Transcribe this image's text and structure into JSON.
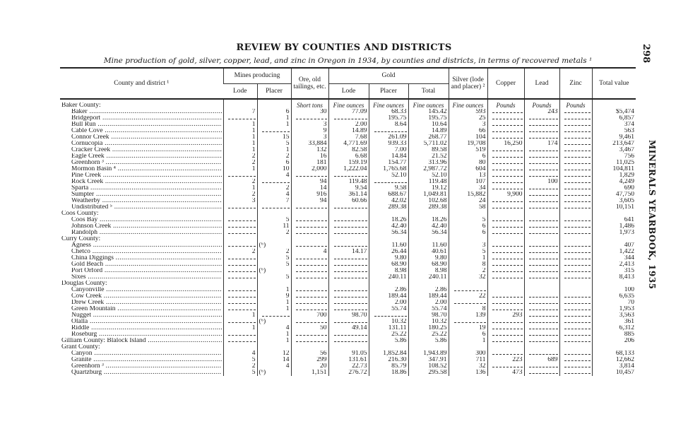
{
  "page": {
    "title": "REVIEW BY COUNTIES AND DISTRICTS",
    "subtitle": "Mine production of gold, silver, copper, lead, and zinc in Oregon in 1934, by counties and districts, in terms of recovered metals ¹",
    "page_number": "298",
    "running_head": "MINERALS YEARBOOK, 1935"
  },
  "table": {
    "headers": {
      "county": "County and district ¹",
      "mines": "Mines producing",
      "mines_lode": "Lode",
      "mines_placer": "Placer",
      "ore": "Ore, old tailings, etc.",
      "gold": "Gold",
      "gold_lode": "Lode",
      "gold_placer": "Placer",
      "gold_total": "Total",
      "silver": "Silver (lode and placer) ²",
      "copper": "Copper",
      "lead": "Lead",
      "zinc": "Zinc",
      "total_value": "Total value"
    },
    "units": [
      "",
      "",
      "Short tons",
      "Fine ounces",
      "Fine ounces",
      "Fine ounces",
      "Fine ounces",
      "Pounds",
      "Pounds",
      "Pounds",
      ""
    ],
    "blank_marker": "-",
    "rows": [
      {
        "name": "Baker County:",
        "group": true
      },
      {
        "name": "Baker",
        "v": [
          "7",
          "6",
          "30",
          "77.09",
          "68.33",
          "145.42",
          "593",
          "-",
          "243",
          "-",
          "$5,474"
        ]
      },
      {
        "name": "Bridgeport",
        "v": [
          "-",
          "1",
          "-",
          "-",
          "195.75",
          "195.75",
          "25",
          "-",
          "-",
          "-",
          "6,857"
        ]
      },
      {
        "name": "Bull Run",
        "v": [
          "1",
          "1",
          "3",
          "2.00",
          "8.64",
          "10.64",
          "3",
          "-",
          "-",
          "-",
          "374"
        ]
      },
      {
        "name": "Cable Cove",
        "v": [
          "1",
          "-",
          "9",
          "14.89",
          "-",
          "14.89",
          "66",
          "-",
          "-",
          "-",
          "563"
        ]
      },
      {
        "name": "Connor Creek",
        "v": [
          "1",
          "15",
          "3",
          "7.68",
          "261.09",
          "268.77",
          "104",
          "-",
          "-",
          "-",
          "9,461"
        ]
      },
      {
        "name": "Cornucopia",
        "v": [
          "1",
          "5",
          "33,884",
          "4,771.69",
          "939.33",
          "5,711.02",
          "19,708",
          "16,250",
          "174",
          "-",
          "213,647"
        ]
      },
      {
        "name": "Cracker Creek",
        "v": [
          "1",
          "1",
          "132",
          "82.58",
          "7.00",
          "89.58",
          "519",
          "-",
          "-",
          "-",
          "3,467"
        ]
      },
      {
        "name": "Eagle Creek",
        "v": [
          "2",
          "2",
          "16",
          "6.68",
          "14.84",
          "21.52",
          "6",
          "-",
          "-",
          "-",
          "756"
        ]
      },
      {
        "name": "Greenhorn ³",
        "v": [
          "2",
          "6",
          "181",
          "159.19",
          "154.77",
          "313.96",
          "80",
          "-",
          "-",
          "-",
          "11,025"
        ]
      },
      {
        "name": "Mormon Basin ⁴",
        "v": [
          "1",
          "10",
          "2,000",
          "1,222.04",
          "1,765.68",
          "2,987.72",
          "604",
          "-",
          "-",
          "-",
          "104,811"
        ]
      },
      {
        "name": "Pine Creek",
        "v": [
          "-",
          "4",
          "-",
          "-",
          "52.10",
          "52.10",
          "13",
          "-",
          "-",
          "-",
          "1,829"
        ]
      },
      {
        "name": "Rock Creek",
        "v": [
          "2",
          "-",
          "94",
          "119.48",
          "-",
          "119.48",
          "107",
          "-",
          "100",
          "-",
          "4,249"
        ]
      },
      {
        "name": "Sparta",
        "v": [
          "1",
          "2",
          "14",
          "9.54",
          "9.58",
          "19.12",
          "34",
          "-",
          "-",
          "-",
          "690"
        ]
      },
      {
        "name": "Sumpter",
        "v": [
          "2",
          "4",
          "916",
          "361.14",
          "688.67",
          "1,049.81",
          "15,882",
          "9,900",
          "-",
          "-",
          "47,750"
        ]
      },
      {
        "name": "Weatherby",
        "v": [
          "3",
          "7",
          "94",
          "60.66",
          "42.02",
          "102.68",
          "24",
          "-",
          "-",
          "-",
          "3,605"
        ]
      },
      {
        "name": "Undistributed ⁵",
        "v": [
          "-",
          "-",
          "-",
          "-",
          "289.38",
          "289.38",
          "58",
          "-",
          "-",
          "-",
          "10,151"
        ]
      },
      {
        "name": "Coos County:",
        "group": true
      },
      {
        "name": "Coos Bay",
        "v": [
          "-",
          "5",
          "-",
          "-",
          "18.26",
          "18.26",
          "5",
          "-",
          "-",
          "-",
          "641"
        ]
      },
      {
        "name": "Johnson Creek",
        "v": [
          "-",
          "11",
          "-",
          "-",
          "42.40",
          "42.40",
          "6",
          "-",
          "-",
          "-",
          "1,486"
        ]
      },
      {
        "name": "Randolph",
        "v": [
          "-",
          "2",
          "-",
          "-",
          "56.34",
          "56.34",
          "6",
          "-",
          "-",
          "-",
          "1,973"
        ]
      },
      {
        "name": "Curry County:",
        "group": true
      },
      {
        "name": "Agness",
        "v": [
          "-",
          "(⁶)",
          "-",
          "-",
          "11.60",
          "11.60",
          "3",
          "-",
          "-",
          "-",
          "407"
        ]
      },
      {
        "name": "Chetco",
        "v": [
          "2",
          "2",
          "4",
          "14.17",
          "26.44",
          "40.61",
          "5",
          "-",
          "-",
          "-",
          "1,422"
        ]
      },
      {
        "name": "China Diggings",
        "v": [
          "-",
          "5",
          "-",
          "-",
          "9.80",
          "9.80",
          "1",
          "-",
          "-",
          "-",
          "344"
        ]
      },
      {
        "name": "Gold Beach",
        "v": [
          "-",
          "5",
          "-",
          "-",
          "68.90",
          "68.90",
          "8",
          "-",
          "-",
          "-",
          "2,413"
        ]
      },
      {
        "name": "Port Orford",
        "v": [
          "-",
          "(⁶)",
          "-",
          "-",
          "8.98",
          "8.98",
          "2",
          "-",
          "-",
          "-",
          "315"
        ]
      },
      {
        "name": "Sixes",
        "v": [
          "-",
          "5",
          "-",
          "-",
          "240.11",
          "240.11",
          "32",
          "-",
          "-",
          "-",
          "8,413"
        ]
      },
      {
        "name": "Douglas County:",
        "group": true
      },
      {
        "name": "Canyonville",
        "v": [
          "-",
          "1",
          "-",
          "-",
          "2.86",
          "2.86",
          "-",
          "",
          "",
          "",
          "100"
        ]
      },
      {
        "name": "Cow Creek",
        "v": [
          "-",
          "9",
          "-",
          "-",
          "189.44",
          "189.44",
          "22",
          "-",
          "-",
          "-",
          "6,635"
        ]
      },
      {
        "name": "Drew Creek",
        "v": [
          "-",
          "1",
          "-",
          "-",
          "2.00",
          "2.00",
          "-",
          "-",
          "-",
          "-",
          "70"
        ]
      },
      {
        "name": "Green Mountain",
        "v": [
          "-",
          "1",
          "-",
          "-",
          "55.74",
          "55.74",
          "8",
          "-",
          "-",
          "-",
          "1,953"
        ]
      },
      {
        "name": "Nugget",
        "v": [
          "1",
          "-",
          "700",
          "98.70",
          "-",
          "98.70",
          "139",
          "293",
          "-",
          "-",
          "3,563"
        ]
      },
      {
        "name": "Olalla",
        "v": [
          "-",
          "(⁶)",
          "-",
          "-",
          "10.32",
          "10.32",
          "-",
          "-",
          "-",
          "-",
          "361"
        ]
      },
      {
        "name": "Riddle",
        "v": [
          "1",
          "4",
          "50",
          "49.14",
          "131.11",
          "180.25",
          "19",
          "-",
          "-",
          "-",
          "6,312"
        ]
      },
      {
        "name": "Roseburg",
        "v": [
          "-",
          "1",
          "-",
          "-",
          "25.22",
          "25.22",
          "6",
          "-",
          "-",
          "-",
          "885"
        ]
      },
      {
        "name": "Gilliam County: Blalock Island",
        "top": true,
        "v": [
          "-",
          "1",
          "-",
          "-",
          "5.86",
          "5.86",
          "1",
          "-",
          "-",
          "-",
          "206"
        ]
      },
      {
        "name": "Grant County:",
        "group": true
      },
      {
        "name": "Canyon",
        "v": [
          "4",
          "12",
          "56",
          "91.05",
          "1,852.84",
          "1,943.89",
          "300",
          "-",
          "-",
          "-",
          "68,133"
        ]
      },
      {
        "name": "Granite",
        "v": [
          "5",
          "14",
          "299",
          "131.61",
          "216.30",
          "347.91",
          "711",
          "223",
          "689",
          "-",
          "12,662"
        ]
      },
      {
        "name": "Greenhorn ³",
        "v": [
          "2",
          "4",
          "20",
          "22.73",
          "85.79",
          "108.52",
          "32",
          "-",
          "-",
          "-",
          "3,814"
        ]
      },
      {
        "name": "Quartzburg",
        "v": [
          "5",
          "(⁶)",
          "1,151",
          "276.72",
          "18.86",
          "295.58",
          "136",
          "473",
          "-",
          "-",
          "10,457"
        ]
      }
    ]
  }
}
